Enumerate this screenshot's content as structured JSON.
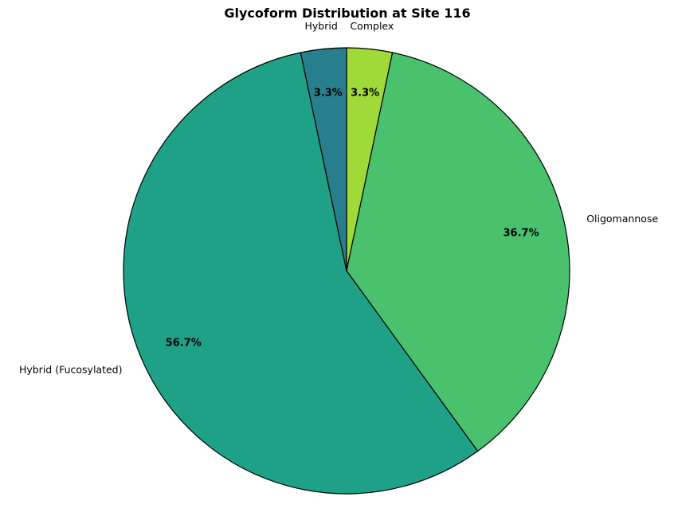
{
  "chart_data": {
    "type": "pie",
    "title": "Glycoform Distribution at Site 116",
    "slices": [
      {
        "label": "Complex",
        "value": 3.3,
        "pct_label": "3.3%",
        "color": "#a0da39"
      },
      {
        "label": "Oligomannose",
        "value": 36.7,
        "pct_label": "36.7%",
        "color": "#4ac16d"
      },
      {
        "label": "Hybrid (Fucosylated)",
        "value": 56.7,
        "pct_label": "56.7%",
        "color": "#1fa187"
      },
      {
        "label": "Hybrid",
        "value": 3.3,
        "pct_label": "3.3%",
        "color": "#277f8e"
      }
    ],
    "start_angle": "top",
    "direction": "clockwise",
    "edge_color": "#000000"
  }
}
